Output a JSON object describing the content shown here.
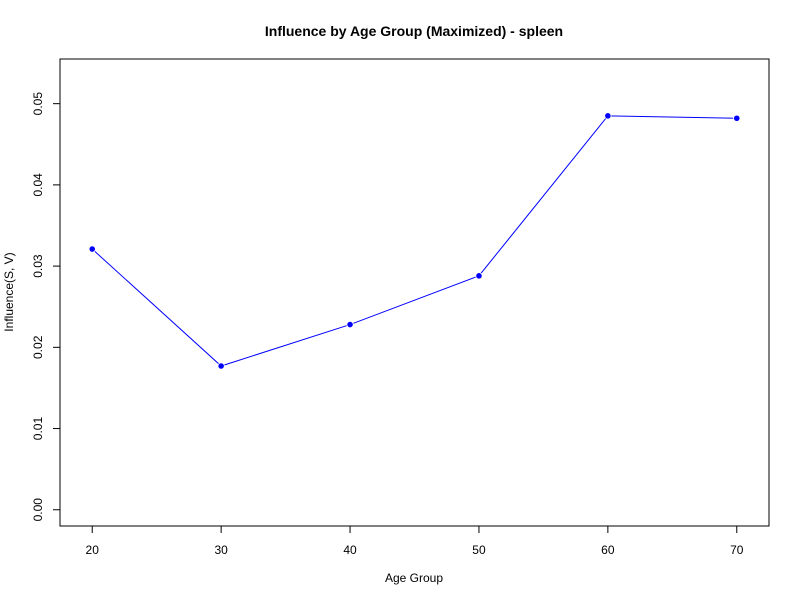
{
  "chart_data": {
    "type": "line",
    "title": "Influence by Age Group (Maximized) - spleen",
    "xlabel": "Age Group",
    "ylabel": "Influence(S, V)",
    "x": [
      20,
      30,
      40,
      50,
      60,
      70
    ],
    "series": [
      {
        "values": [
          0.0321,
          0.0177,
          0.0228,
          0.0288,
          0.0485,
          0.0482
        ]
      }
    ],
    "xticks": [
      "20",
      "30",
      "40",
      "50",
      "60",
      "70"
    ],
    "yticks": [
      "0.00",
      "0.01",
      "0.02",
      "0.03",
      "0.04",
      "0.05"
    ],
    "xlim": [
      17.5,
      72.5
    ],
    "ylim": [
      -0.002,
      0.0555
    ],
    "grid": false,
    "colors": {
      "line": "#0000ff",
      "point": "#0000ff",
      "axis": "#000000"
    }
  }
}
